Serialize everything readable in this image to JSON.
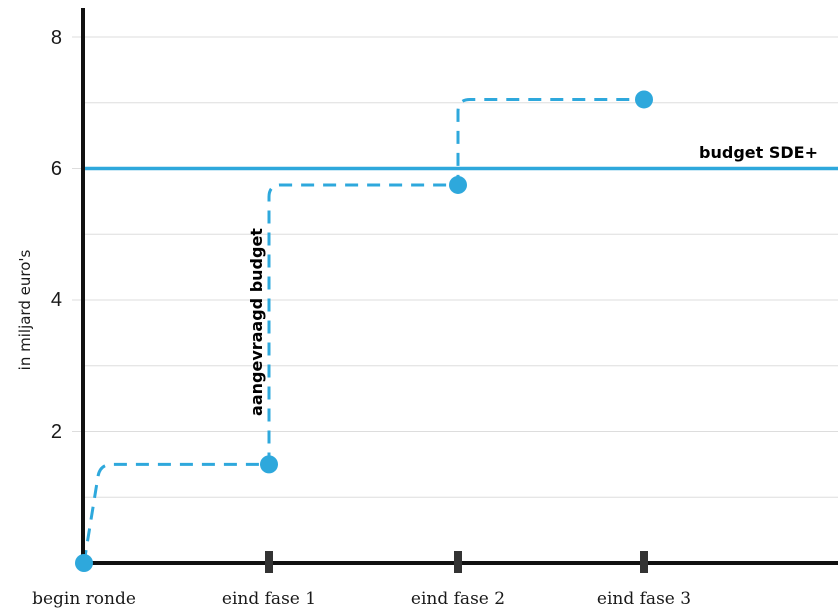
{
  "chart_data": {
    "type": "line",
    "xlabel": "",
    "ylabel": "in miljard euro's",
    "categories": [
      "begin ronde",
      "eind fase 1",
      "eind fase 2",
      "eind fase 3"
    ],
    "y_ticks": [
      "8",
      "6",
      "4",
      "2"
    ],
    "y_tick_values": [
      8,
      6,
      4,
      2
    ],
    "ylim": [
      0,
      8.4
    ],
    "gridlines": [
      1,
      2,
      3,
      4,
      5,
      6,
      7,
      8
    ],
    "grid": true,
    "series": [
      {
        "name": "aangevraagd budget",
        "style": "dashed-step",
        "color": "#2ea8dc",
        "points": [
          {
            "x": "begin ronde",
            "y": 0
          },
          {
            "x": "eind fase 1",
            "y": 1.5
          },
          {
            "x": "eind fase 2",
            "y": 5.75
          },
          {
            "x": "eind fase 3",
            "y": 7.05
          }
        ]
      },
      {
        "name": "budget SDE+",
        "style": "solid-horizontal",
        "color": "#2ea8dc",
        "value": 6
      }
    ],
    "colors": {
      "accent": "#2ea8dc",
      "axis": "#111111",
      "grid": "#dddddd",
      "tick_marker": "#333333"
    }
  }
}
